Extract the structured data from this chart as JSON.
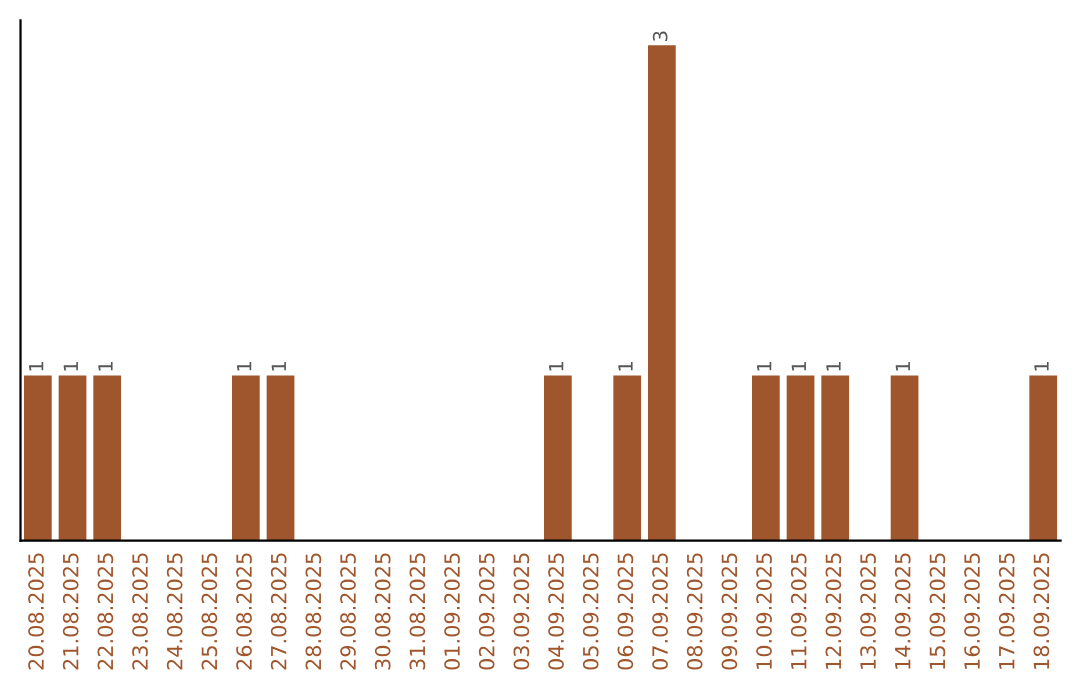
{
  "chart_data": {
    "type": "bar",
    "categories": [
      "20.08.2025",
      "21.08.2025",
      "22.08.2025",
      "23.08.2025",
      "24.08.2025",
      "25.08.2025",
      "26.08.2025",
      "27.08.2025",
      "28.08.2025",
      "29.08.2025",
      "30.08.2025",
      "31.08.2025",
      "01.09.2025",
      "02.09.2025",
      "03.09.2025",
      "04.09.2025",
      "05.09.2025",
      "06.09.2025",
      "07.09.2025",
      "08.09.2025",
      "09.09.2025",
      "10.09.2025",
      "11.09.2025",
      "12.09.2025",
      "13.09.2025",
      "14.09.2025",
      "15.09.2025",
      "16.09.2025",
      "17.09.2025",
      "18.09.2025"
    ],
    "values": [
      1,
      1,
      1,
      0,
      0,
      0,
      1,
      1,
      0,
      0,
      0,
      0,
      0,
      0,
      0,
      1,
      0,
      1,
      3,
      0,
      0,
      1,
      1,
      1,
      0,
      1,
      0,
      0,
      0,
      1
    ],
    "value_labels": [
      "1",
      "1",
      "1",
      null,
      null,
      null,
      "1",
      "1",
      null,
      null,
      null,
      null,
      null,
      null,
      null,
      "1",
      null,
      "1",
      "3",
      null,
      null,
      "1",
      "1",
      "1",
      null,
      "1",
      null,
      null,
      null,
      "1"
    ],
    "color": "#a0562c",
    "tick_labels": "x",
    "grid": false,
    "legend": false
  }
}
